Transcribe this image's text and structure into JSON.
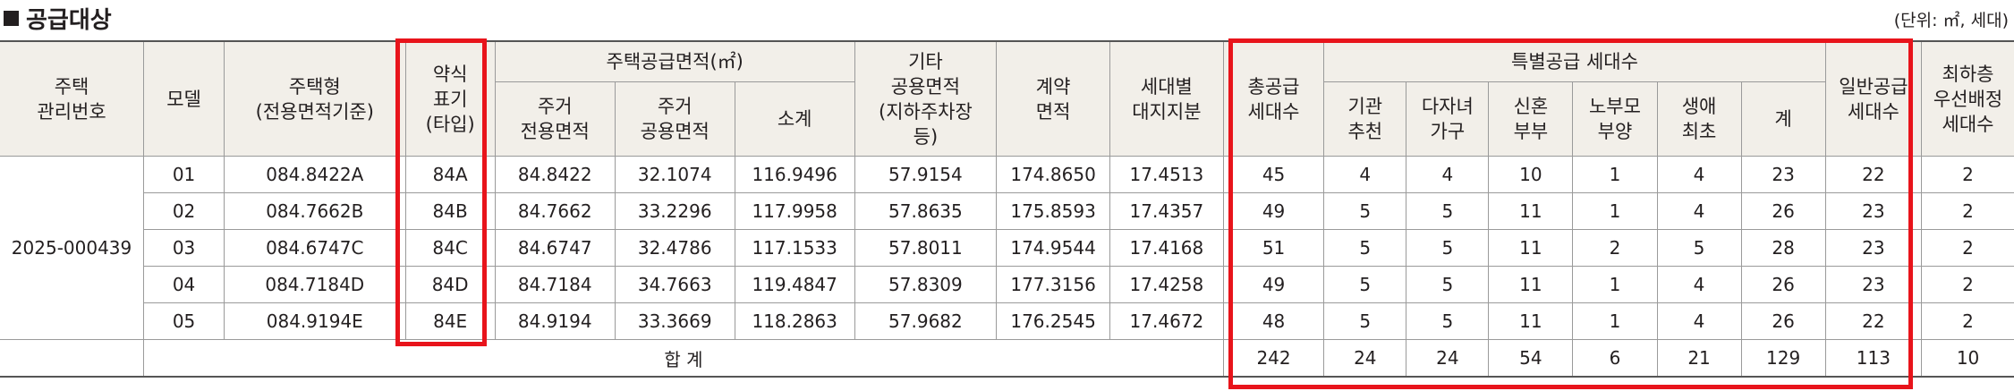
{
  "section_title": "공급대상",
  "unit_note": "(단위: ㎡, 세대)",
  "headers": {
    "housing_mgmt_no": [
      "주택",
      "관리번호"
    ],
    "model": "모델",
    "housing_type": [
      "주택형",
      "(전용면적기준)"
    ],
    "abbr_type": [
      "약식",
      "표기",
      "(타입)"
    ],
    "supply_area_group": "주택공급면적(㎡)",
    "residential_exclusive": [
      "주거",
      "전용면적"
    ],
    "residential_common": [
      "주거",
      "공용면적"
    ],
    "subtotal": "소계",
    "other_common": [
      "기타",
      "공용면적",
      "(지하주차장",
      "등)"
    ],
    "contract_area": [
      "계약",
      "면적"
    ],
    "land_share": [
      "세대별",
      "대지지분"
    ],
    "total_supply": [
      "총공급",
      "세대수"
    ],
    "special_group": "특별공급 세대수",
    "institution": [
      "기관",
      "추천"
    ],
    "multi_child": [
      "다자녀",
      "가구"
    ],
    "newlywed": [
      "신혼",
      "부부"
    ],
    "elderly_parent": [
      "노부모",
      "부양"
    ],
    "first_life": [
      "생애",
      "최초"
    ],
    "special_total": "계",
    "general_supply": [
      "일반공급",
      "세대수"
    ],
    "lowest_floor": [
      "최하층",
      "우선배정",
      "세대수"
    ]
  },
  "mgmt_no": "2025-000439",
  "rows": [
    {
      "model": "01",
      "type": "084.8422A",
      "abbr": "84A",
      "excl": "84.8422",
      "comm": "32.1074",
      "sub": "116.9496",
      "other": "57.9154",
      "contract": "174.8650",
      "land": "17.4513",
      "total": "45",
      "inst": "4",
      "multi": "4",
      "newly": "10",
      "elder": "1",
      "first": "4",
      "sp_total": "23",
      "general": "22",
      "lowest": "2"
    },
    {
      "model": "02",
      "type": "084.7662B",
      "abbr": "84B",
      "excl": "84.7662",
      "comm": "33.2296",
      "sub": "117.9958",
      "other": "57.8635",
      "contract": "175.8593",
      "land": "17.4357",
      "total": "49",
      "inst": "5",
      "multi": "5",
      "newly": "11",
      "elder": "1",
      "first": "4",
      "sp_total": "26",
      "general": "23",
      "lowest": "2"
    },
    {
      "model": "03",
      "type": "084.6747C",
      "abbr": "84C",
      "excl": "84.6747",
      "comm": "32.4786",
      "sub": "117.1533",
      "other": "57.8011",
      "contract": "174.9544",
      "land": "17.4168",
      "total": "51",
      "inst": "5",
      "multi": "5",
      "newly": "11",
      "elder": "2",
      "first": "5",
      "sp_total": "28",
      "general": "23",
      "lowest": "2"
    },
    {
      "model": "04",
      "type": "084.7184D",
      "abbr": "84D",
      "excl": "84.7184",
      "comm": "34.7663",
      "sub": "119.4847",
      "other": "57.8309",
      "contract": "177.3156",
      "land": "17.4258",
      "total": "49",
      "inst": "5",
      "multi": "5",
      "newly": "11",
      "elder": "1",
      "first": "4",
      "sp_total": "26",
      "general": "23",
      "lowest": "2"
    },
    {
      "model": "05",
      "type": "084.9194E",
      "abbr": "84E",
      "excl": "84.9194",
      "comm": "33.3669",
      "sub": "118.2863",
      "other": "57.9682",
      "contract": "176.2545",
      "land": "17.4672",
      "total": "48",
      "inst": "5",
      "multi": "5",
      "newly": "11",
      "elder": "1",
      "first": "4",
      "sp_total": "26",
      "general": "22",
      "lowest": "2"
    }
  ],
  "totals": {
    "label": "합 계",
    "total": "242",
    "inst": "24",
    "multi": "24",
    "newly": "54",
    "elder": "6",
    "first": "21",
    "sp_total": "129",
    "general": "113",
    "lowest": "10"
  },
  "highlight_color": "#e8141b"
}
